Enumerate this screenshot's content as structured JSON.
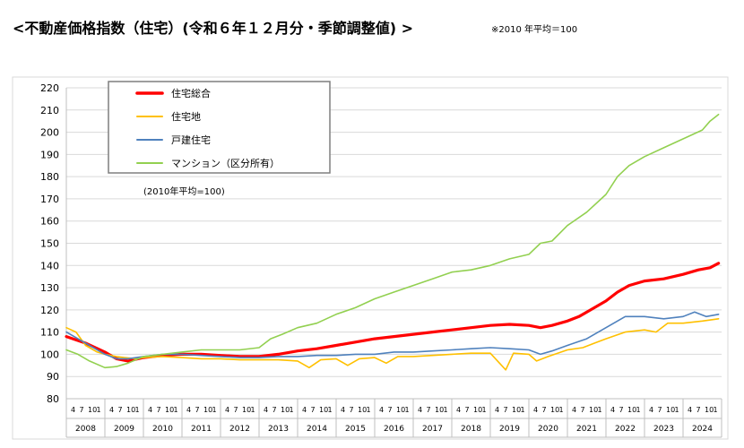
{
  "header": {
    "title": "<不動産価格指数（住宅）(令和６年１２月分・季節調整値) >",
    "note": "※2010 年平均＝100"
  },
  "chart_data": {
    "type": "line",
    "annotation": "(2010年平均=100)",
    "y_ticks": [
      "220",
      "210",
      "200",
      "190",
      "180",
      "170",
      "160",
      "150",
      "140",
      "130",
      "120",
      "110",
      "100",
      "90",
      "80"
    ],
    "ylim": [
      80,
      220
    ],
    "x_years": [
      "2008",
      "2009",
      "2010",
      "2011",
      "2012",
      "2013",
      "2014",
      "2015",
      "2016",
      "2017",
      "2018",
      "2019",
      "2020",
      "2021",
      "2022",
      "2023",
      "2024"
    ],
    "x_month_labels": [
      "4",
      "7",
      "10",
      "1"
    ],
    "grid": true,
    "legend_position": "top-left",
    "series": [
      {
        "name": "住宅総合",
        "color": "#ff0000",
        "width": 3.2,
        "points": [
          [
            2008.0,
            108
          ],
          [
            2008.5,
            105
          ],
          [
            2009.0,
            101
          ],
          [
            2009.3,
            98
          ],
          [
            2009.6,
            97
          ],
          [
            2010.0,
            98.5
          ],
          [
            2010.5,
            99.5
          ],
          [
            2011.0,
            100
          ],
          [
            2011.5,
            100
          ],
          [
            2012.0,
            99.5
          ],
          [
            2012.5,
            99
          ],
          [
            2013.0,
            99
          ],
          [
            2013.5,
            100
          ],
          [
            2014.0,
            101.5
          ],
          [
            2014.5,
            102.5
          ],
          [
            2015.0,
            104
          ],
          [
            2015.5,
            105.5
          ],
          [
            2016.0,
            107
          ],
          [
            2016.5,
            108
          ],
          [
            2017.0,
            109
          ],
          [
            2017.5,
            110
          ],
          [
            2018.0,
            111
          ],
          [
            2018.5,
            112
          ],
          [
            2019.0,
            113
          ],
          [
            2019.5,
            113.5
          ],
          [
            2020.0,
            113
          ],
          [
            2020.3,
            112
          ],
          [
            2020.6,
            113
          ],
          [
            2021.0,
            115
          ],
          [
            2021.3,
            117
          ],
          [
            2021.6,
            120
          ],
          [
            2022.0,
            124
          ],
          [
            2022.3,
            128
          ],
          [
            2022.6,
            131
          ],
          [
            2023.0,
            133
          ],
          [
            2023.5,
            134
          ],
          [
            2024.0,
            136
          ],
          [
            2024.4,
            138
          ],
          [
            2024.7,
            139
          ],
          [
            2024.92,
            141
          ]
        ]
      },
      {
        "name": "住宅地",
        "color": "#ffc000",
        "width": 1.6,
        "points": [
          [
            2008.0,
            112
          ],
          [
            2008.25,
            110
          ],
          [
            2008.5,
            104
          ],
          [
            2008.8,
            101
          ],
          [
            2009.0,
            100
          ],
          [
            2009.3,
            99
          ],
          [
            2009.5,
            98.5
          ],
          [
            2009.8,
            98
          ],
          [
            2010.0,
            98.5
          ],
          [
            2010.5,
            99
          ],
          [
            2011.0,
            98.5
          ],
          [
            2011.5,
            98
          ],
          [
            2012.0,
            98
          ],
          [
            2012.5,
            97.5
          ],
          [
            2013.0,
            97.5
          ],
          [
            2013.5,
            97.5
          ],
          [
            2014.0,
            97
          ],
          [
            2014.3,
            94
          ],
          [
            2014.6,
            97.5
          ],
          [
            2015.0,
            98
          ],
          [
            2015.3,
            95
          ],
          [
            2015.6,
            98
          ],
          [
            2016.0,
            98.5
          ],
          [
            2016.3,
            96
          ],
          [
            2016.6,
            99
          ],
          [
            2017.0,
            99
          ],
          [
            2017.5,
            99.5
          ],
          [
            2018.0,
            100
          ],
          [
            2018.5,
            100.5
          ],
          [
            2019.0,
            100.5
          ],
          [
            2019.4,
            93
          ],
          [
            2019.6,
            100.5
          ],
          [
            2020.0,
            100
          ],
          [
            2020.2,
            97
          ],
          [
            2020.5,
            99
          ],
          [
            2021.0,
            102
          ],
          [
            2021.4,
            103
          ],
          [
            2021.7,
            105
          ],
          [
            2022.0,
            107
          ],
          [
            2022.5,
            110
          ],
          [
            2023.0,
            111
          ],
          [
            2023.3,
            110
          ],
          [
            2023.6,
            114
          ],
          [
            2024.0,
            114
          ],
          [
            2024.5,
            115
          ],
          [
            2024.92,
            116
          ]
        ]
      },
      {
        "name": "戸建住宅",
        "color": "#4f81bd",
        "width": 1.6,
        "points": [
          [
            2008.0,
            110
          ],
          [
            2008.5,
            105
          ],
          [
            2009.0,
            100
          ],
          [
            2009.3,
            98
          ],
          [
            2009.6,
            98
          ],
          [
            2010.0,
            99
          ],
          [
            2010.5,
            100
          ],
          [
            2011.0,
            100
          ],
          [
            2011.5,
            99.5
          ],
          [
            2012.0,
            99
          ],
          [
            2012.5,
            98.5
          ],
          [
            2013.0,
            98.5
          ],
          [
            2013.5,
            99
          ],
          [
            2014.0,
            99
          ],
          [
            2014.5,
            99.5
          ],
          [
            2015.0,
            99.5
          ],
          [
            2015.5,
            100
          ],
          [
            2016.0,
            100
          ],
          [
            2016.5,
            101
          ],
          [
            2017.0,
            101
          ],
          [
            2017.5,
            101.5
          ],
          [
            2018.0,
            102
          ],
          [
            2018.5,
            102.5
          ],
          [
            2019.0,
            103
          ],
          [
            2019.5,
            102.5
          ],
          [
            2020.0,
            102
          ],
          [
            2020.3,
            100
          ],
          [
            2020.6,
            101.5
          ],
          [
            2021.0,
            104
          ],
          [
            2021.5,
            107
          ],
          [
            2022.0,
            112
          ],
          [
            2022.5,
            117
          ],
          [
            2023.0,
            117
          ],
          [
            2023.5,
            116
          ],
          [
            2024.0,
            117
          ],
          [
            2024.3,
            119
          ],
          [
            2024.6,
            117
          ],
          [
            2024.92,
            118
          ]
        ]
      },
      {
        "name": "マンション（区分所有）",
        "color": "#92d050",
        "width": 1.6,
        "points": [
          [
            2008.0,
            102
          ],
          [
            2008.3,
            100
          ],
          [
            2008.6,
            97
          ],
          [
            2009.0,
            94
          ],
          [
            2009.3,
            94.5
          ],
          [
            2009.6,
            96
          ],
          [
            2010.0,
            99
          ],
          [
            2010.5,
            100
          ],
          [
            2011.0,
            101
          ],
          [
            2011.5,
            102
          ],
          [
            2012.0,
            102
          ],
          [
            2012.5,
            102
          ],
          [
            2013.0,
            103
          ],
          [
            2013.3,
            107
          ],
          [
            2013.6,
            109
          ],
          [
            2014.0,
            112
          ],
          [
            2014.5,
            114
          ],
          [
            2015.0,
            118
          ],
          [
            2015.5,
            121
          ],
          [
            2016.0,
            125
          ],
          [
            2016.5,
            128
          ],
          [
            2017.0,
            131
          ],
          [
            2017.5,
            134
          ],
          [
            2018.0,
            137
          ],
          [
            2018.5,
            138
          ],
          [
            2019.0,
            140
          ],
          [
            2019.5,
            143
          ],
          [
            2020.0,
            145
          ],
          [
            2020.3,
            150
          ],
          [
            2020.6,
            151
          ],
          [
            2021.0,
            158
          ],
          [
            2021.5,
            164
          ],
          [
            2022.0,
            172
          ],
          [
            2022.3,
            180
          ],
          [
            2022.6,
            185
          ],
          [
            2023.0,
            189
          ],
          [
            2023.5,
            193
          ],
          [
            2024.0,
            197
          ],
          [
            2024.5,
            201
          ],
          [
            2024.7,
            205
          ],
          [
            2024.92,
            208
          ]
        ]
      }
    ]
  }
}
